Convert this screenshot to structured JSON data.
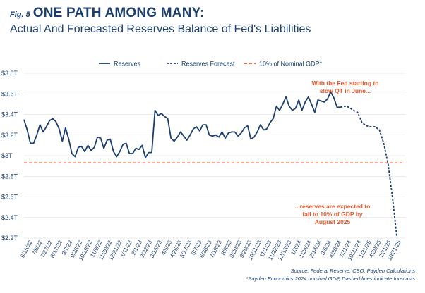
{
  "heading": {
    "fig_label": "Fig. 5",
    "title": "ONE PATH AMONG MANY:",
    "subtitle": "Actual And Forecasted Reserves Balance of Fed's Liabilities"
  },
  "footer": {
    "source": "Source: Federal Reserve, CBO, Payden Calculations",
    "note": "*Payden Economics 2024 nominal GDP, Dashed lines indicate forecasts"
  },
  "colors": {
    "series": "#1c3f6e",
    "threshold": "#e8562a",
    "annotation": "#e8562a",
    "text": "#1c3f6e",
    "grid": "#d9d9d9"
  },
  "chart_data": {
    "type": "line",
    "xlabel": "",
    "ylabel": "",
    "ylim": [
      2.2,
      3.8
    ],
    "yticks": [
      "$2.2T",
      "$2.4T",
      "$2.6T",
      "$2.8T",
      "$3T",
      "$3.2T",
      "$3.4T",
      "$3.6T",
      "$3.8T"
    ],
    "grid": "horizontal",
    "legend_position": "top-center",
    "x_tick_labels": [
      "6/15/22",
      "7/6/22",
      "7/27/22",
      "8/17/22",
      "9/7/22",
      "9/28/22",
      "10/19/22",
      "11/9/22",
      "11/30/22",
      "12/21/22",
      "1/11/23",
      "2/1/23",
      "2/22/23",
      "3/15/23",
      "4/5/23",
      "4/26/23",
      "5/17/23",
      "6/7/23",
      "6/28/23",
      "7/19/23",
      "8/9/23",
      "8/30/23",
      "9/20/23",
      "10/11/23",
      "11/1/23",
      "11/22/23",
      "12/13/23",
      "1/3/24",
      "1/24/24",
      "2/14/24",
      "3/6/24",
      "4/30/24",
      "7/31/24",
      "10/31/24",
      "1/31/25",
      "4/30/25",
      "7/31/25",
      "10/31/25"
    ],
    "series": [
      {
        "name": "Reserves",
        "style": "solid",
        "values": [
          3.35,
          3.25,
          3.12,
          3.12,
          3.2,
          3.3,
          3.23,
          3.28,
          3.34,
          3.36,
          3.33,
          3.26,
          3.14,
          3.27,
          3.16,
          3.02,
          2.99,
          3.08,
          3.09,
          3.04,
          3.1,
          3.05,
          3.08,
          3.18,
          3.17,
          3.07,
          3.15,
          3.16,
          3.04,
          2.99,
          3.04,
          3.11,
          3.12,
          3.02,
          3.02,
          3.07,
          3.06,
          3.1,
          2.98,
          3.03,
          3.03,
          3.44,
          3.39,
          3.41,
          3.38,
          3.36,
          3.17,
          3.14,
          3.18,
          3.23,
          3.19,
          3.15,
          3.2,
          3.26,
          3.28,
          3.24,
          3.3,
          3.3,
          3.2,
          3.19,
          3.2,
          3.18,
          3.23,
          3.17,
          3.22,
          3.23,
          3.23,
          3.19,
          3.22,
          3.27,
          3.29,
          3.16,
          3.18,
          3.23,
          3.3,
          3.25,
          3.26,
          3.32,
          3.36,
          3.48,
          3.44,
          3.5,
          3.57,
          3.48,
          3.44,
          3.46,
          3.54,
          3.44,
          3.52,
          3.57,
          3.5,
          3.42,
          3.54,
          3.53,
          3.52,
          3.55,
          3.62,
          3.56,
          3.47,
          3.47
        ]
      },
      {
        "name": "Reserves Forecast",
        "style": "dashed",
        "values": [
          3.47,
          3.48,
          3.47,
          3.44,
          3.42,
          3.32,
          3.29,
          3.28,
          3.28,
          3.25,
          3.12,
          2.92,
          2.6,
          2.22
        ]
      },
      {
        "name": "10% of Nominal GDP*",
        "style": "dashed",
        "values": [
          2.93,
          2.93
        ]
      }
    ],
    "annotations": [
      {
        "text": [
          "With the Fed starting to",
          "slow QT in June..."
        ]
      },
      {
        "text": [
          "...reserves are expected to",
          "fall to 10% of GDP by",
          "August 2025"
        ]
      }
    ]
  }
}
